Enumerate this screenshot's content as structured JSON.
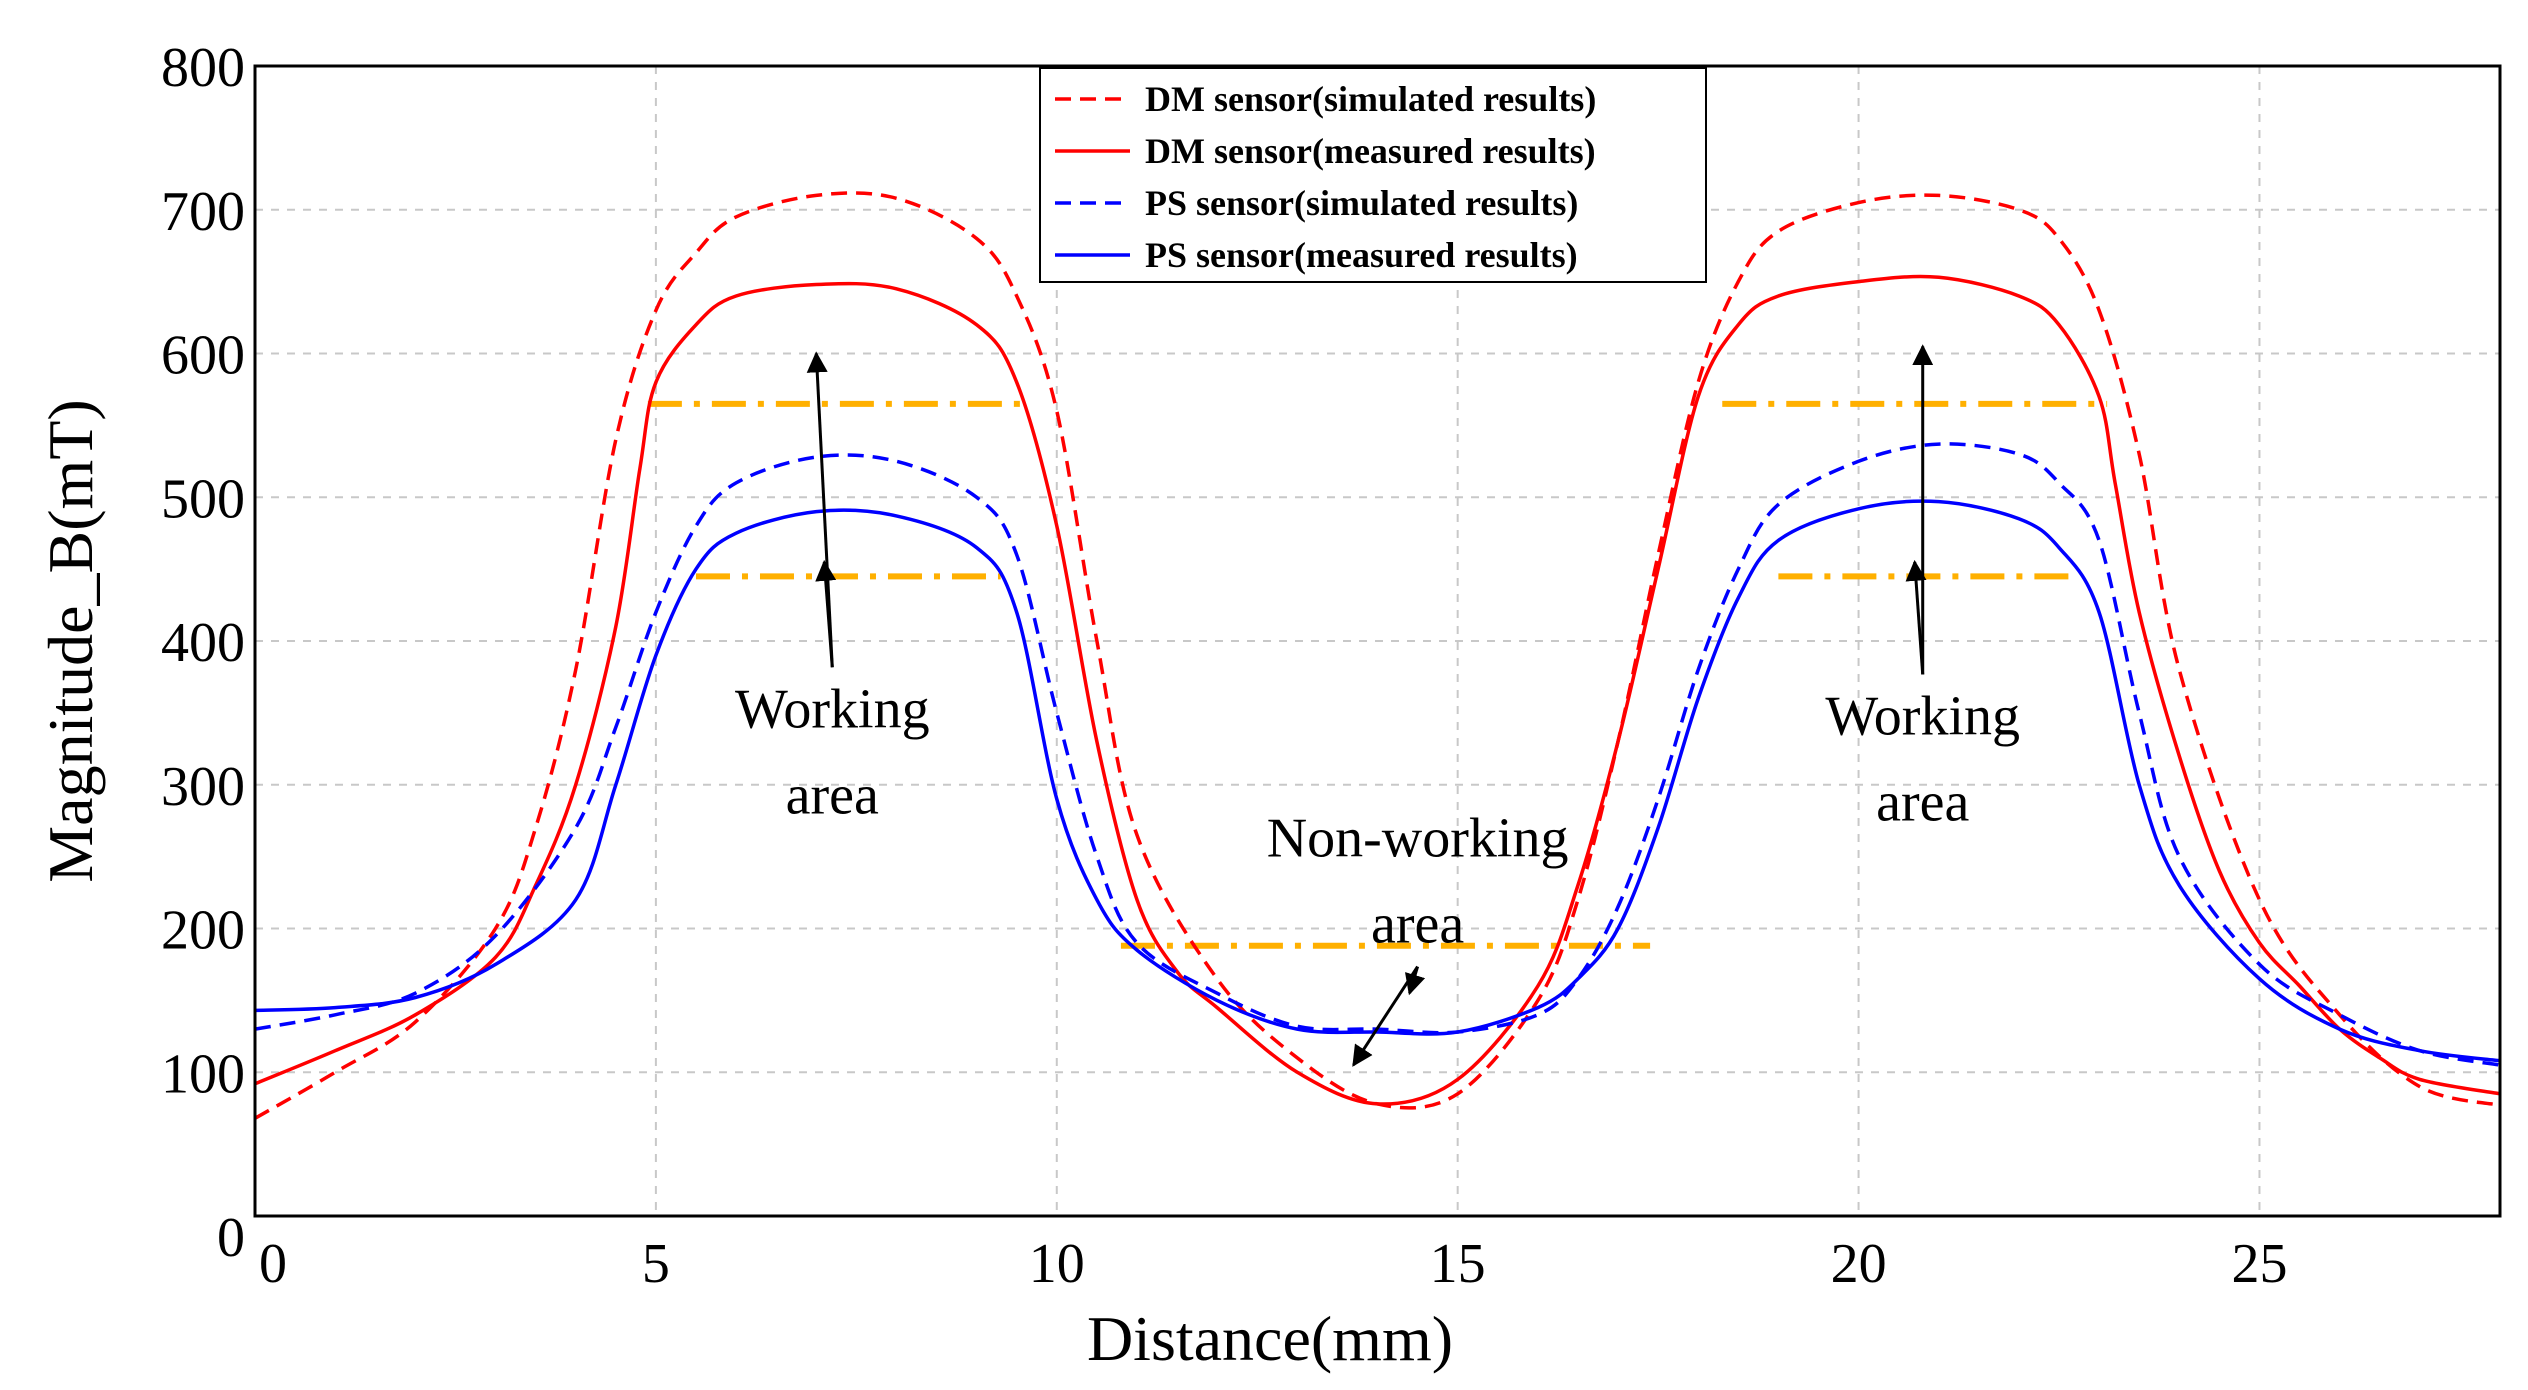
{
  "chart_data": {
    "type": "line",
    "title": "",
    "xlabel": "Distance(mm)",
    "ylabel": "Magnitude_B(mT)",
    "xlim": [
      0,
      28
    ],
    "ylim": [
      0,
      800
    ],
    "xticks": [
      0,
      5,
      10,
      15,
      20,
      25
    ],
    "yticks": [
      0,
      100,
      200,
      300,
      400,
      500,
      600,
      700,
      800
    ],
    "xtick_labels": [
      "0",
      "5",
      "10",
      "15",
      "20",
      "25"
    ],
    "ytick_labels": [
      "0",
      "100",
      "200",
      "300",
      "400",
      "500",
      "600",
      "700",
      "800"
    ],
    "grid": true,
    "legend_position": "top-center",
    "series": [
      {
        "name": "DM sensor(simulated results)",
        "color": "#ff0000",
        "dash": "dashed",
        "x": [
          0,
          1,
          2,
          3,
          3.5,
          4,
          4.5,
          5,
          5.5,
          6,
          7,
          8,
          9,
          9.5,
          10,
          10.5,
          11,
          12,
          13,
          14,
          15,
          16,
          16.5,
          17,
          17.5,
          18,
          18.5,
          19,
          20,
          21,
          22,
          22.5,
          23,
          23.5,
          24,
          25,
          26,
          27,
          28
        ],
        "y": [
          68,
          100,
          135,
          200,
          270,
          380,
          540,
          630,
          670,
          695,
          710,
          708,
          680,
          640,
          560,
          400,
          265,
          165,
          110,
          78,
          85,
          150,
          220,
          330,
          460,
          580,
          650,
          685,
          705,
          710,
          700,
          680,
          630,
          530,
          380,
          220,
          140,
          90,
          77
        ]
      },
      {
        "name": "DM sensor(measured results)",
        "color": "#ff0000",
        "dash": "solid",
        "x": [
          0,
          1,
          2,
          3,
          3.5,
          4,
          4.5,
          4.8,
          5,
          5.5,
          6,
          7,
          8,
          9,
          9.5,
          10,
          10.5,
          11,
          11.5,
          12,
          13,
          14,
          15,
          16,
          16.5,
          17,
          17.5,
          18,
          18.5,
          19,
          20,
          21,
          22,
          22.5,
          23,
          23.2,
          23.5,
          24,
          24.5,
          25,
          25.5,
          26,
          26.5,
          27,
          28
        ],
        "y": [
          92,
          115,
          140,
          180,
          230,
          300,
          410,
          520,
          580,
          620,
          640,
          648,
          645,
          620,
          580,
          480,
          330,
          220,
          170,
          145,
          100,
          78,
          95,
          160,
          230,
          330,
          450,
          570,
          620,
          640,
          650,
          653,
          640,
          620,
          570,
          510,
          420,
          320,
          240,
          190,
          160,
          130,
          110,
          95,
          85
        ]
      },
      {
        "name": "PS sensor(simulated results)",
        "color": "#0000ff",
        "dash": "dashed",
        "x": [
          0,
          1,
          2,
          3,
          4,
          4.5,
          5,
          5.5,
          6,
          7,
          8,
          9,
          9.5,
          10,
          10.5,
          11,
          12,
          13,
          14,
          15,
          16,
          16.5,
          17,
          17.5,
          18,
          18.5,
          19,
          20,
          21,
          22,
          22.5,
          23,
          23.5,
          24,
          25,
          26,
          27,
          28
        ],
        "y": [
          130,
          140,
          155,
          195,
          270,
          340,
          420,
          480,
          510,
          528,
          525,
          500,
          460,
          350,
          250,
          190,
          155,
          132,
          130,
          128,
          140,
          165,
          215,
          290,
          380,
          450,
          495,
          525,
          537,
          530,
          510,
          470,
          350,
          250,
          175,
          140,
          115,
          105
        ]
      },
      {
        "name": "PS sensor(measured results)",
        "color": "#0000ff",
        "dash": "solid",
        "x": [
          0,
          1,
          2,
          3,
          4,
          4.5,
          5,
          5.5,
          6,
          7,
          8,
          9,
          9.5,
          10,
          10.5,
          11,
          12,
          13,
          14,
          15,
          16,
          16.5,
          17,
          17.5,
          18,
          18.5,
          19,
          20,
          21,
          22,
          22.5,
          23,
          23.5,
          24,
          25,
          26,
          27,
          28
        ],
        "y": [
          143,
          145,
          152,
          175,
          220,
          300,
          390,
          450,
          475,
          490,
          487,
          465,
          420,
          290,
          220,
          185,
          150,
          130,
          128,
          128,
          145,
          165,
          200,
          270,
          360,
          430,
          470,
          492,
          497,
          485,
          465,
          420,
          300,
          230,
          165,
          130,
          115,
          108
        ]
      }
    ],
    "reference_lines": [
      {
        "x": [
          4.9,
          9.6
        ],
        "y": 565,
        "color": "#ffb000",
        "dash": "dash-dot"
      },
      {
        "x": [
          5.5,
          9.3
        ],
        "y": 445,
        "color": "#ffb000",
        "dash": "dash-dot"
      },
      {
        "x": [
          10.8,
          17.4
        ],
        "y": 188,
        "color": "#ffb000",
        "dash": "dash-dot"
      },
      {
        "x": [
          18.3,
          23.1
        ],
        "y": 565,
        "color": "#ffb000",
        "dash": "dash-dot"
      },
      {
        "x": [
          19.0,
          22.7
        ],
        "y": 445,
        "color": "#ffb000",
        "dash": "dash-dot"
      }
    ],
    "annotations": [
      {
        "id": "left-working",
        "lines": [
          "Working",
          "area"
        ],
        "x": 7.2,
        "y": 340,
        "arrows": [
          [
            7.0,
            600
          ],
          [
            7.1,
            455
          ]
        ]
      },
      {
        "id": "non-working",
        "lines": [
          "Non-working",
          "area"
        ],
        "x": 14.5,
        "y": 250,
        "arrows": [
          [
            13.7,
            105
          ],
          [
            14.4,
            155
          ]
        ]
      },
      {
        "id": "right-working",
        "lines": [
          "Working",
          "area"
        ],
        "x": 20.8,
        "y": 335,
        "arrows": [
          [
            20.8,
            605
          ],
          [
            20.7,
            455
          ]
        ]
      }
    ]
  }
}
